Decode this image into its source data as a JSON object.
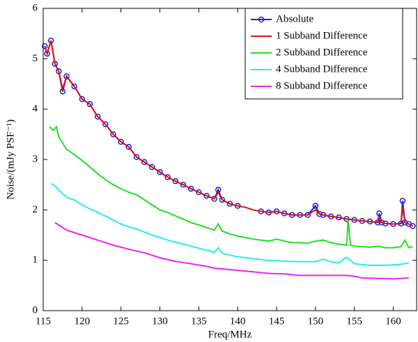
{
  "chart_data": {
    "type": "line",
    "xlabel": "Freq/MHz",
    "ylabel": "Noise/(mJy PSF⁻¹)",
    "xlim": [
      115,
      163
    ],
    "xticks": [
      115,
      120,
      125,
      130,
      135,
      140,
      145,
      150,
      155,
      160
    ],
    "ylim": [
      0,
      6
    ],
    "yticks": [
      0,
      1,
      2,
      3,
      4,
      5,
      6
    ],
    "legend": "upper right",
    "series": [
      {
        "name": "Absolute",
        "color": "#1f1fd0",
        "marker": "circle",
        "x": [
          115.2,
          115.5,
          116,
          116.5,
          117,
          117.5,
          118,
          119,
          120,
          121,
          122,
          123,
          124,
          125,
          126,
          127,
          128,
          129,
          130,
          131,
          132,
          133,
          134,
          135,
          136,
          137,
          137.5,
          138,
          139,
          140,
          141,
          142,
          143,
          144,
          145,
          146,
          147,
          148,
          149,
          150,
          150.5,
          151,
          152,
          153,
          154,
          155,
          156,
          157,
          158,
          158.2,
          158.5,
          159,
          160,
          161,
          161.2,
          161.5,
          162,
          162.5
        ],
        "values": [
          5.25,
          5.1,
          5.36,
          4.9,
          4.75,
          4.35,
          4.65,
          4.45,
          4.2,
          4.1,
          3.85,
          3.7,
          3.5,
          3.35,
          3.25,
          3.05,
          2.95,
          2.85,
          2.75,
          2.65,
          2.57,
          2.5,
          2.42,
          2.35,
          2.28,
          2.22,
          2.4,
          2.2,
          2.12,
          2.08,
          null,
          null,
          1.97,
          1.95,
          1.97,
          1.93,
          1.9,
          1.9,
          1.9,
          2.08,
          1.92,
          1.9,
          1.87,
          1.85,
          1.82,
          1.8,
          1.78,
          1.77,
          1.75,
          1.93,
          1.75,
          1.73,
          1.72,
          1.73,
          2.18,
          1.75,
          1.72,
          1.68
        ]
      },
      {
        "name": "1 Subband Difference",
        "color": "#e01010",
        "x": [
          115.2,
          115.5,
          116,
          116.5,
          117,
          117.5,
          118,
          119,
          120,
          121,
          122,
          123,
          124,
          125,
          126,
          127,
          128,
          129,
          130,
          131,
          132,
          133,
          134,
          135,
          136,
          137,
          137.5,
          138,
          139,
          140,
          141,
          142,
          143,
          144,
          145,
          146,
          147,
          148,
          149,
          150,
          150.5,
          151,
          152,
          153,
          154,
          155,
          156,
          157,
          158,
          158.2,
          158.5,
          159,
          160,
          161,
          161.2,
          161.5,
          162,
          162.5
        ],
        "values": [
          5.25,
          5.1,
          5.36,
          4.9,
          4.75,
          4.4,
          4.65,
          4.45,
          4.2,
          4.1,
          3.85,
          3.7,
          3.5,
          3.35,
          3.25,
          3.05,
          2.95,
          2.85,
          2.75,
          2.65,
          2.57,
          2.5,
          2.42,
          2.35,
          2.28,
          2.22,
          2.35,
          2.2,
          2.12,
          2.08,
          2.05,
          2.0,
          1.97,
          1.95,
          1.97,
          1.93,
          1.9,
          1.9,
          1.9,
          2.0,
          1.92,
          1.9,
          1.87,
          1.85,
          1.82,
          1.8,
          1.78,
          1.77,
          1.75,
          1.85,
          1.75,
          1.73,
          1.72,
          1.73,
          2.05,
          1.75,
          1.72,
          1.68
        ]
      },
      {
        "name": "2 Subband Difference",
        "color": "#22dd22",
        "x": [
          115.8,
          116.3,
          116.7,
          117,
          118,
          119,
          120,
          121,
          122,
          123,
          124,
          125,
          126,
          127,
          128,
          129,
          130,
          131,
          132,
          133,
          134,
          135,
          136,
          137,
          137.5,
          138,
          139,
          140,
          141,
          142,
          143,
          144,
          145,
          146,
          147,
          148,
          149,
          150,
          151,
          152,
          153,
          154,
          154.2,
          154.5,
          155,
          156,
          157,
          158,
          159,
          160,
          161,
          161.5,
          162,
          162.5
        ],
        "values": [
          3.65,
          3.58,
          3.65,
          3.45,
          3.2,
          3.1,
          2.98,
          2.85,
          2.72,
          2.6,
          2.5,
          2.42,
          2.35,
          2.3,
          2.2,
          2.1,
          2.0,
          1.95,
          1.88,
          1.82,
          1.75,
          1.7,
          1.65,
          1.6,
          1.72,
          1.58,
          1.52,
          1.48,
          1.45,
          1.42,
          1.4,
          1.38,
          1.42,
          1.38,
          1.35,
          1.35,
          1.34,
          1.38,
          1.4,
          1.35,
          1.32,
          1.3,
          1.8,
          1.3,
          1.28,
          1.27,
          1.26,
          1.28,
          1.25,
          1.25,
          1.27,
          1.4,
          1.25,
          1.27
        ]
      },
      {
        "name": "4 Subband Difference",
        "color": "#22eeee",
        "x": [
          116,
          116.5,
          117,
          118,
          119,
          120,
          121,
          122,
          123,
          124,
          125,
          126,
          127,
          128,
          129,
          130,
          131,
          132,
          133,
          134,
          135,
          136,
          137,
          137.5,
          138,
          139,
          140,
          142,
          144,
          146,
          148,
          150,
          151,
          152,
          153,
          154,
          154.5,
          155,
          157,
          159,
          161,
          162
        ],
        "values": [
          2.52,
          2.48,
          2.4,
          2.25,
          2.2,
          2.1,
          2.02,
          1.95,
          1.88,
          1.8,
          1.72,
          1.66,
          1.62,
          1.56,
          1.5,
          1.45,
          1.4,
          1.36,
          1.32,
          1.28,
          1.24,
          1.2,
          1.16,
          1.25,
          1.14,
          1.1,
          1.07,
          1.03,
          1.0,
          0.98,
          0.97,
          0.97,
          1.02,
          0.97,
          0.95,
          1.06,
          1.0,
          0.93,
          0.9,
          0.9,
          0.92,
          0.95
        ]
      },
      {
        "name": "8 Subband Difference",
        "color": "#ee22ee",
        "x": [
          116.5,
          117,
          118,
          120,
          122,
          124,
          126,
          128,
          130,
          132,
          134,
          136,
          137,
          138,
          140,
          142,
          144,
          146,
          148,
          150,
          152,
          154,
          155,
          156,
          158,
          160,
          162
        ],
        "values": [
          1.75,
          1.7,
          1.6,
          1.5,
          1.4,
          1.3,
          1.22,
          1.15,
          1.05,
          0.98,
          0.93,
          0.88,
          0.84,
          0.83,
          0.8,
          0.77,
          0.74,
          0.73,
          0.7,
          0.7,
          0.7,
          0.7,
          0.68,
          0.65,
          0.64,
          0.63,
          0.65
        ]
      }
    ]
  }
}
